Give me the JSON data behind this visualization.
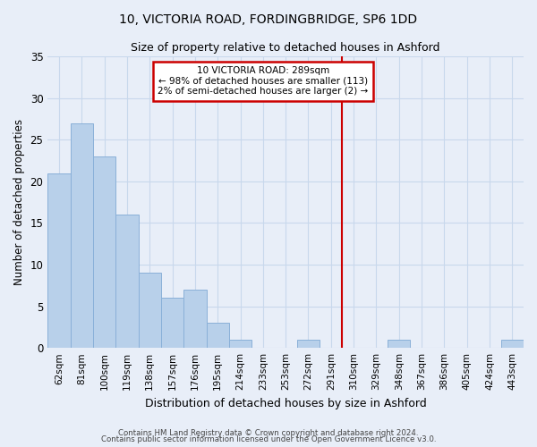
{
  "title": "10, VICTORIA ROAD, FORDINGBRIDGE, SP6 1DD",
  "subtitle": "Size of property relative to detached houses in Ashford",
  "xlabel": "Distribution of detached houses by size in Ashford",
  "ylabel": "Number of detached properties",
  "categories": [
    "62sqm",
    "81sqm",
    "100sqm",
    "119sqm",
    "138sqm",
    "157sqm",
    "176sqm",
    "195sqm",
    "214sqm",
    "233sqm",
    "253sqm",
    "272sqm",
    "291sqm",
    "310sqm",
    "329sqm",
    "348sqm",
    "367sqm",
    "386sqm",
    "405sqm",
    "424sqm",
    "443sqm"
  ],
  "values": [
    21,
    27,
    23,
    16,
    9,
    6,
    7,
    3,
    1,
    0,
    0,
    1,
    0,
    0,
    0,
    1,
    0,
    0,
    0,
    0,
    1
  ],
  "bar_color": "#b8d0ea",
  "bar_edge_color": "#8ab0d8",
  "grid_color": "#c8d8ec",
  "background_color": "#e8eef8",
  "annotation_line1": "10 VICTORIA ROAD: 289sqm",
  "annotation_line2": "← 98% of detached houses are smaller (113)",
  "annotation_line3": "2% of semi-detached houses are larger (2) →",
  "annotation_box_color": "#cc0000",
  "red_line_index": 12.5,
  "ylim": [
    0,
    35
  ],
  "yticks": [
    0,
    5,
    10,
    15,
    20,
    25,
    30,
    35
  ],
  "footer1": "Contains HM Land Registry data © Crown copyright and database right 2024.",
  "footer2": "Contains public sector information licensed under the Open Government Licence v3.0."
}
